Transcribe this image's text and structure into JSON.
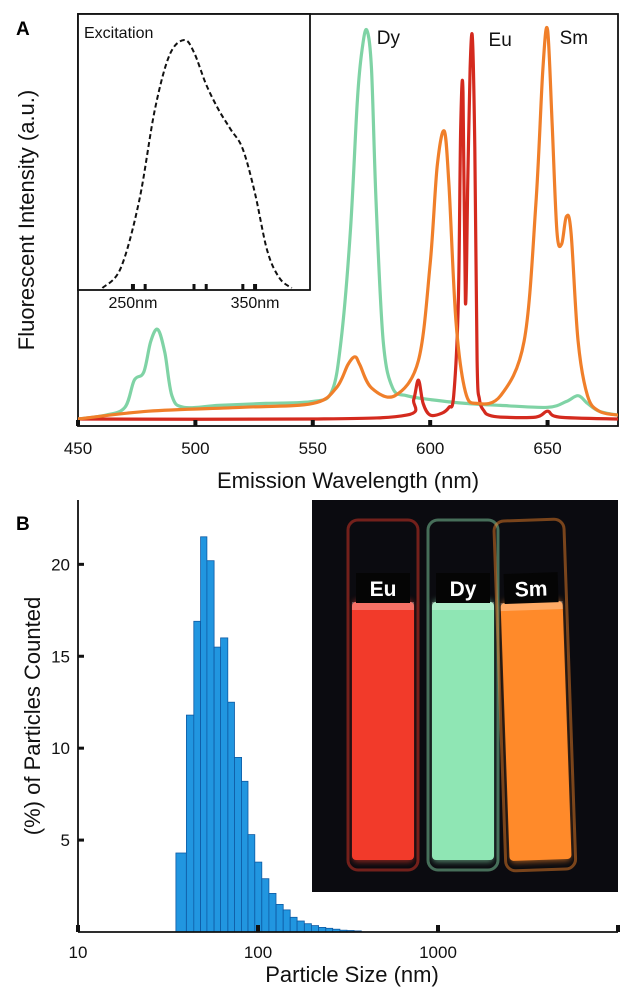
{
  "chart_data": [
    {
      "panel": "A",
      "type": "line",
      "xlabel": "Emission Wavelength (nm)",
      "ylabel": "Fluorescent Intensity (a.u.)",
      "xlim": [
        450,
        680
      ],
      "ylim": [
        0,
        1
      ],
      "x_ticks": [
        450,
        500,
        550,
        600,
        650
      ],
      "series": [
        {
          "name": "Dy",
          "color": "#7fd3a5",
          "x": [
            450,
            462,
            470,
            474,
            478,
            481,
            484,
            487,
            490,
            495,
            510,
            530,
            550,
            558,
            562,
            566,
            569,
            571,
            573,
            575,
            577,
            580,
            584,
            590,
            600,
            615,
            630,
            650,
            658,
            663,
            667,
            672,
            680
          ],
          "y": [
            0.0,
            0.01,
            0.03,
            0.1,
            0.12,
            0.2,
            0.23,
            0.17,
            0.06,
            0.03,
            0.035,
            0.04,
            0.045,
            0.07,
            0.2,
            0.48,
            0.82,
            0.95,
            1.0,
            0.9,
            0.55,
            0.2,
            0.08,
            0.06,
            0.05,
            0.04,
            0.035,
            0.03,
            0.045,
            0.06,
            0.04,
            0.02,
            0.01
          ]
        },
        {
          "name": "Eu",
          "color": "#d42a1e",
          "x": [
            450,
            550,
            590,
            593,
            595,
            597,
            600,
            605,
            608,
            610,
            612,
            613,
            614,
            615,
            616,
            617,
            618,
            619,
            620,
            621,
            623,
            625,
            630,
            645,
            650,
            655,
            680
          ],
          "y": [
            0.0,
            0.0,
            0.01,
            0.05,
            0.1,
            0.04,
            0.01,
            0.015,
            0.03,
            0.06,
            0.3,
            0.75,
            0.84,
            0.3,
            0.6,
            0.9,
            0.98,
            0.7,
            0.15,
            0.05,
            0.02,
            0.01,
            0.005,
            0.005,
            0.02,
            0.005,
            0.0
          ],
          "x_label_pos": 624
        },
        {
          "name": "Sm",
          "color": "#f07f2a",
          "x": [
            450,
            480,
            520,
            550,
            560,
            565,
            568,
            570,
            575,
            585,
            595,
            600,
            603,
            606,
            608,
            611,
            615,
            620,
            630,
            640,
            645,
            648,
            650,
            652,
            654,
            656,
            658,
            660,
            663,
            667,
            672,
            680
          ],
          "y": [
            0.0,
            0.02,
            0.03,
            0.04,
            0.08,
            0.14,
            0.16,
            0.14,
            0.08,
            0.06,
            0.15,
            0.4,
            0.65,
            0.74,
            0.6,
            0.25,
            0.07,
            0.04,
            0.06,
            0.2,
            0.55,
            0.9,
            1.0,
            0.75,
            0.48,
            0.45,
            0.52,
            0.48,
            0.2,
            0.06,
            0.02,
            0.01
          ]
        }
      ],
      "inset": {
        "title": "Excitation",
        "type": "line",
        "style": "dashed",
        "x_tick_labels": [
          "250nm",
          "350nm"
        ],
        "x_tick_values": [
          250,
          350
        ],
        "xlim": [
          205,
          395
        ],
        "x_minor_ticks": [
          260,
          300,
          310,
          340
        ],
        "series": [
          {
            "x": [
              225,
              240,
              255,
              268,
              280,
              292,
              300,
              310,
              320,
              330,
              340,
              350,
              360,
              370,
              380
            ],
            "y": [
              0.0,
              0.08,
              0.35,
              0.72,
              0.94,
              1.0,
              0.95,
              0.82,
              0.72,
              0.64,
              0.56,
              0.38,
              0.15,
              0.04,
              0.0
            ]
          }
        ]
      }
    },
    {
      "panel": "B",
      "type": "bar",
      "xscale": "log",
      "xlabel": "Particle Size (nm)",
      "ylabel": "(%) of Particles Counted",
      "xlim": [
        10,
        10000
      ],
      "ylim": [
        0,
        23.5
      ],
      "x_tick_labels": [
        "10",
        "100",
        "1000"
      ],
      "x_tick_values": [
        10,
        100,
        1000
      ],
      "y_ticks": [
        5,
        10,
        15,
        20
      ],
      "bar_color": "#2196e0",
      "bins": [
        {
          "from": 35,
          "to": 40,
          "value": 4.3
        },
        {
          "from": 40,
          "to": 44,
          "value": 11.8
        },
        {
          "from": 44,
          "to": 48,
          "value": 16.9
        },
        {
          "from": 48,
          "to": 52,
          "value": 21.5
        },
        {
          "from": 52,
          "to": 57,
          "value": 20.2
        },
        {
          "from": 57,
          "to": 62,
          "value": 15.5
        },
        {
          "from": 62,
          "to": 68,
          "value": 16.0
        },
        {
          "from": 68,
          "to": 74,
          "value": 12.5
        },
        {
          "from": 74,
          "to": 81,
          "value": 9.5
        },
        {
          "from": 81,
          "to": 88,
          "value": 8.2
        },
        {
          "from": 88,
          "to": 96,
          "value": 5.3
        },
        {
          "from": 96,
          "to": 105,
          "value": 3.8
        },
        {
          "from": 105,
          "to": 115,
          "value": 2.9
        },
        {
          "from": 115,
          "to": 126,
          "value": 2.1
        },
        {
          "from": 126,
          "to": 138,
          "value": 1.5
        },
        {
          "from": 138,
          "to": 151,
          "value": 1.2
        },
        {
          "from": 151,
          "to": 165,
          "value": 0.8
        },
        {
          "from": 165,
          "to": 181,
          "value": 0.6
        },
        {
          "from": 181,
          "to": 198,
          "value": 0.45
        },
        {
          "from": 198,
          "to": 217,
          "value": 0.35
        },
        {
          "from": 217,
          "to": 238,
          "value": 0.25
        },
        {
          "from": 238,
          "to": 260,
          "value": 0.2
        },
        {
          "from": 260,
          "to": 285,
          "value": 0.15
        },
        {
          "from": 285,
          "to": 312,
          "value": 0.1
        },
        {
          "from": 312,
          "to": 342,
          "value": 0.08
        },
        {
          "from": 342,
          "to": 375,
          "value": 0.06
        }
      ],
      "inset_photo": {
        "vials": [
          {
            "label": "Eu",
            "liquid_color": "#f23a2a"
          },
          {
            "label": "Dy",
            "liquid_color": "#8fe6b4"
          },
          {
            "label": "Sm",
            "liquid_color": "#ff8a2a"
          }
        ]
      }
    }
  ]
}
